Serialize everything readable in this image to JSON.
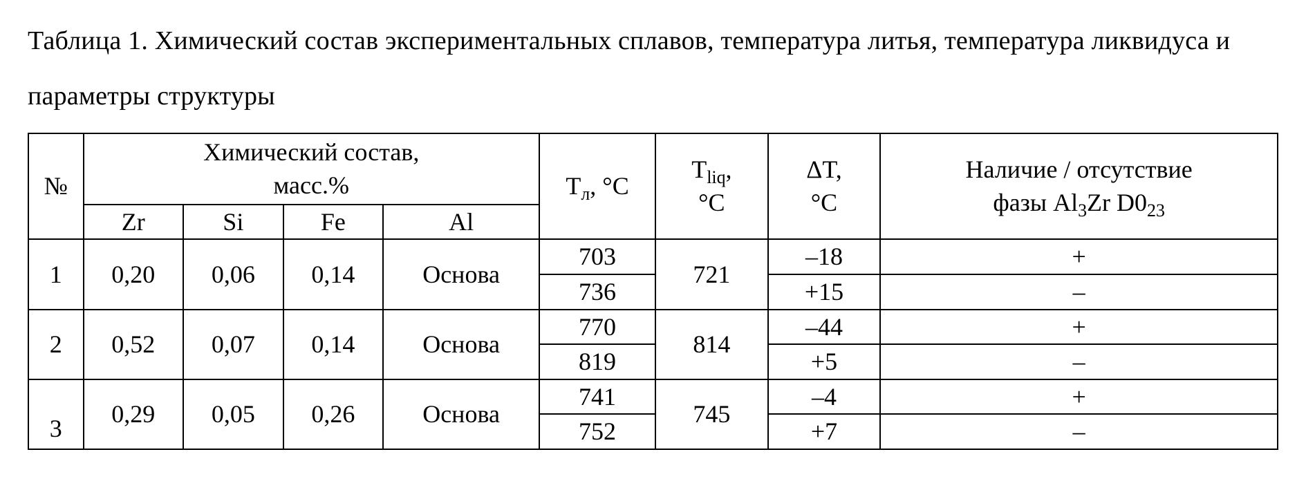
{
  "caption": "Таблица 1. Химический состав экспериментальных сплавов, температура литья, температура ликвидуса и параметры структуры",
  "headers": {
    "no": "№",
    "chem_title_line1": "Химический состав,",
    "chem_title_line2": "масс.%",
    "zr": "Zr",
    "si": "Si",
    "fe": "Fe",
    "al": "Al",
    "t_cast_plain": "T",
    "t_cast_sub": "л",
    "t_liq_plain": "T",
    "t_liq_sub": "liq",
    "deg_c": "°C",
    "comma_deg_c": ", °C",
    "comma": ",",
    "dT": "ΔT,",
    "phase_line1": "Наличие / отсутствие",
    "phase_line2_pre": "фазы Al",
    "phase_line2_sub1": "3",
    "phase_line2_mid": "Zr D0",
    "phase_line2_sub2": "23"
  },
  "table": {
    "type": "table",
    "columns": [
      "№",
      "Zr",
      "Si",
      "Fe",
      "Al",
      "Tл, °C",
      "Tliq, °C",
      "ΔT, °C",
      "Наличие/отсутствие фазы Al3Zr D023"
    ],
    "text_color": "#000000",
    "border_color": "#000000",
    "background_color": "#ffffff",
    "font_family": "Times New Roman",
    "header_fontsize_pt": 27,
    "body_fontsize_pt": 27,
    "rows": [
      {
        "no": "1",
        "zr": "0,20",
        "si": "0,06",
        "fe": "0,14",
        "al": "Основа",
        "t_liq": "721",
        "sub": [
          {
            "t_cast": "703",
            "dT": "–18",
            "phase": "+"
          },
          {
            "t_cast": "736",
            "dT": "+15",
            "phase": "–"
          }
        ]
      },
      {
        "no": "2",
        "zr": "0,52",
        "si": "0,07",
        "fe": "0,14",
        "al": "Основа",
        "t_liq": "814",
        "sub": [
          {
            "t_cast": "770",
            "dT": "–44",
            "phase": "+"
          },
          {
            "t_cast": "819",
            "dT": "+5",
            "phase": "–"
          }
        ]
      },
      {
        "no": "3",
        "zr": "0,29",
        "si": "0,05",
        "fe": "0,26",
        "al": "Основа",
        "t_liq": "745",
        "sub": [
          {
            "t_cast": "741",
            "dT": "–4",
            "phase": "+"
          },
          {
            "t_cast": "752",
            "dT": "+7",
            "phase": "–"
          }
        ]
      }
    ]
  }
}
